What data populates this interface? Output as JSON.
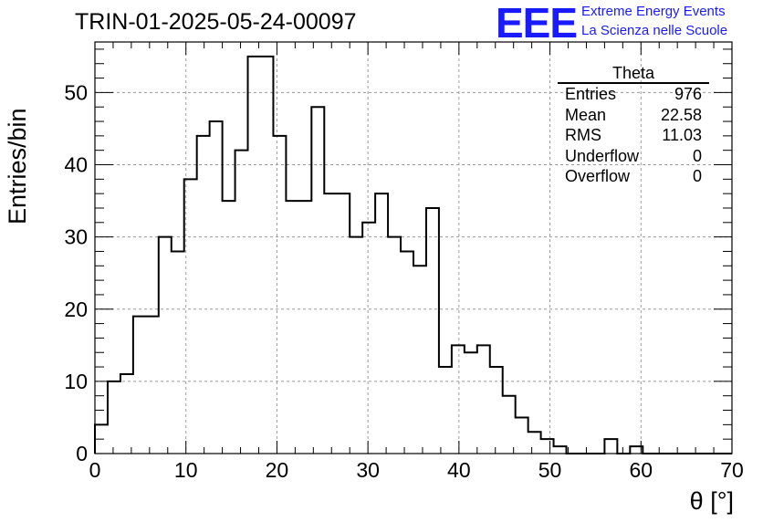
{
  "header": {
    "title": "TRIN-01-2025-05-24-00097",
    "logo_mark": "EEE",
    "logo_line1": "Extreme Energy Events",
    "logo_line2": "La Scienza nelle Scuole",
    "logo_color": "#1a1aff"
  },
  "stats": {
    "title": "Theta",
    "rows": [
      {
        "label": "Entries",
        "value": "976"
      },
      {
        "label": "Mean",
        "value": "22.58"
      },
      {
        "label": "RMS",
        "value": "11.03"
      },
      {
        "label": "Underflow",
        "value": "0"
      },
      {
        "label": "Overflow",
        "value": "0"
      }
    ]
  },
  "chart_data": {
    "type": "histogram",
    "title": "TRIN-01-2025-05-24-00097",
    "xlabel": "θ [°]",
    "ylabel": "Entries/bin",
    "xlim": [
      0,
      70
    ],
    "ylim": [
      0,
      57
    ],
    "grid": true,
    "bin_width": 1.4,
    "bin_edges_start": 0,
    "values": [
      4,
      10,
      11,
      19,
      19,
      30,
      28,
      38,
      44,
      46,
      35,
      42,
      55,
      55,
      44,
      35,
      35,
      48,
      36,
      36,
      30,
      32,
      36,
      30,
      28,
      26,
      34,
      12,
      15,
      14,
      15,
      12,
      8,
      5,
      3,
      2,
      1,
      0,
      0,
      0,
      2,
      0,
      1,
      0,
      0,
      0,
      0,
      0,
      0,
      0
    ],
    "x_ticks": [
      "0",
      "10",
      "20",
      "30",
      "40",
      "50",
      "60",
      "70"
    ],
    "y_ticks": [
      "0",
      "10",
      "20",
      "30",
      "40",
      "50"
    ],
    "line_color": "#000000",
    "grid_color": "#9a9a9a"
  }
}
